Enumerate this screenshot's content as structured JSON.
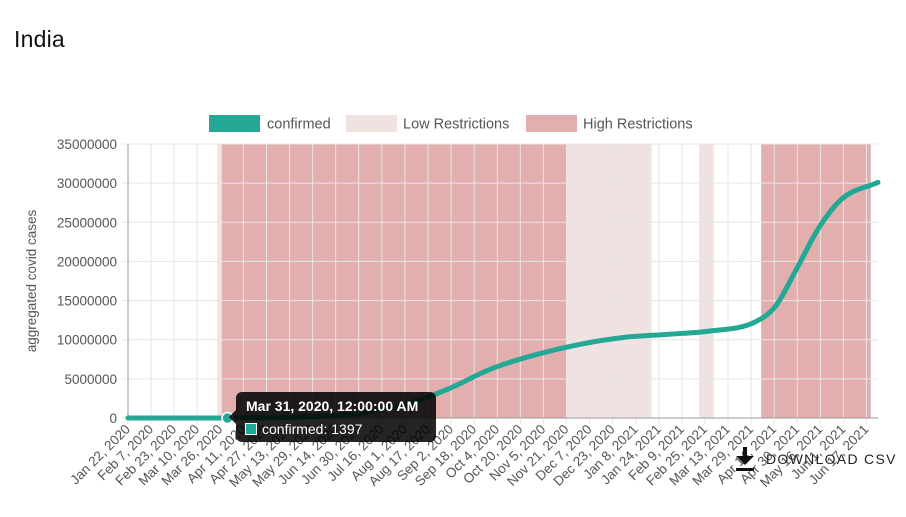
{
  "page": {
    "title": "India"
  },
  "colors": {
    "line": "#22a894",
    "low_band": "#f1e2e2",
    "high_band": "#e2aeae",
    "grid": "#e6e6e6",
    "axis": "#999999"
  },
  "download": {
    "label": "DOWNLOAD CSV",
    "icon": "download-icon"
  },
  "tooltip": {
    "title": "Mar 31, 2020, 12:00:00 AM",
    "series": "confirmed",
    "value_text": "1397",
    "x": "2020-03-31",
    "y": 1397
  },
  "chart_data": {
    "type": "line",
    "title": "",
    "xlabel": "",
    "ylabel": "aggregated covid cases",
    "legend_position": "top",
    "grid": true,
    "x_range": [
      "2020-01-22",
      "2021-06-25"
    ],
    "ylim": [
      0,
      35000000
    ],
    "y_ticks": [
      "35000000",
      "30000000",
      "25000000",
      "20000000",
      "15000000",
      "10000000",
      "5000000",
      "0"
    ],
    "y_tick_values": [
      35000000,
      30000000,
      25000000,
      20000000,
      15000000,
      10000000,
      5000000,
      0
    ],
    "x_ticks": [
      "Jan 22, 2020",
      "Feb 7, 2020",
      "Feb 23, 2020",
      "Mar 10, 2020",
      "Mar 26, 2020",
      "Apr 11, 2020",
      "Apr 27, 2020",
      "May 13, 2020",
      "May 29, 2020",
      "Jun 14, 2020",
      "Jun 30, 2020",
      "Jul 16, 2020",
      "Aug 1, 2020",
      "Aug 17, 2020",
      "Sep 2, 2020",
      "Sep 18, 2020",
      "Oct 4, 2020",
      "Oct 20, 2020",
      "Nov 5, 2020",
      "Nov 21, 2020",
      "Dec 7, 2020",
      "Dec 23, 2020",
      "Jan 8, 2021",
      "Jan 24, 2021",
      "Feb 9, 2021",
      "Feb 25, 2021",
      "Mar 13, 2021",
      "Mar 29, 2021",
      "Apr 14, 2021",
      "Apr 30, 2021",
      "May 16, 2021",
      "Jun 1, 2021",
      "Jun 17, 2021"
    ],
    "x_tick_dates": [
      "2020-01-22",
      "2020-02-07",
      "2020-02-23",
      "2020-03-10",
      "2020-03-26",
      "2020-04-11",
      "2020-04-27",
      "2020-05-13",
      "2020-05-29",
      "2020-06-14",
      "2020-06-30",
      "2020-07-16",
      "2020-08-01",
      "2020-08-17",
      "2020-09-02",
      "2020-09-18",
      "2020-10-04",
      "2020-10-20",
      "2020-11-05",
      "2020-11-21",
      "2020-12-07",
      "2020-12-23",
      "2021-01-08",
      "2021-01-24",
      "2021-02-09",
      "2021-02-25",
      "2021-03-13",
      "2021-03-29",
      "2021-04-14",
      "2021-04-30",
      "2021-05-16",
      "2021-06-01",
      "2021-06-17"
    ],
    "series": [
      {
        "name": "confirmed",
        "color": "#22a894",
        "points": [
          {
            "x": "2020-01-22",
            "y": 0
          },
          {
            "x": "2020-02-23",
            "y": 3
          },
          {
            "x": "2020-03-31",
            "y": 1397
          },
          {
            "x": "2020-04-30",
            "y": 35000
          },
          {
            "x": "2020-05-31",
            "y": 190000
          },
          {
            "x": "2020-06-30",
            "y": 580000
          },
          {
            "x": "2020-07-31",
            "y": 1700000
          },
          {
            "x": "2020-08-31",
            "y": 3700000
          },
          {
            "x": "2020-09-30",
            "y": 6300000
          },
          {
            "x": "2020-10-31",
            "y": 8100000
          },
          {
            "x": "2020-11-30",
            "y": 9400000
          },
          {
            "x": "2020-12-31",
            "y": 10300000
          },
          {
            "x": "2021-01-31",
            "y": 10700000
          },
          {
            "x": "2021-02-28",
            "y": 11100000
          },
          {
            "x": "2021-03-31",
            "y": 12200000
          },
          {
            "x": "2021-04-15",
            "y": 14300000
          },
          {
            "x": "2021-04-30",
            "y": 19200000
          },
          {
            "x": "2021-05-15",
            "y": 24300000
          },
          {
            "x": "2021-05-31",
            "y": 28000000
          },
          {
            "x": "2021-06-25",
            "y": 30100000
          }
        ]
      }
    ],
    "bands": [
      {
        "name": "Low Restrictions",
        "color": "#f1e2e2",
        "start": "2020-03-24",
        "end": "2020-03-27"
      },
      {
        "name": "High Restrictions",
        "color": "#e2aeae",
        "start": "2020-03-27",
        "end": "2020-11-21"
      },
      {
        "name": "Low Restrictions",
        "color": "#f1e2e2",
        "start": "2020-11-21",
        "end": "2021-01-19"
      },
      {
        "name": "Low Restrictions",
        "color": "#f1e2e2",
        "start": "2021-02-21",
        "end": "2021-03-03"
      },
      {
        "name": "High Restrictions",
        "color": "#e2aeae",
        "start": "2021-04-05",
        "end": "2021-06-20"
      }
    ],
    "legend": [
      {
        "label": "confirmed",
        "color": "#22a894"
      },
      {
        "label": "Low Restrictions",
        "color": "#f1e2e2"
      },
      {
        "label": "High Restrictions",
        "color": "#e2aeae"
      }
    ]
  }
}
